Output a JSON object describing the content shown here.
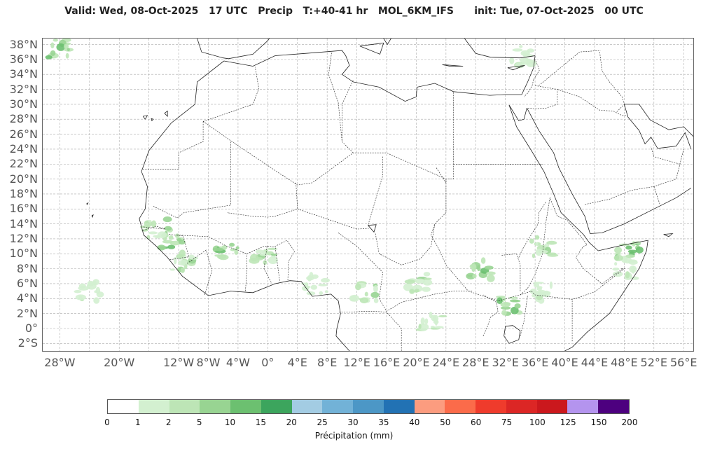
{
  "title": "Valid: Wed, 08-Oct-2025   17 UTC   Precip   T:+40-41 hr   MOL_6KM_IFS      init: Tue, 07-Oct-2025   00 UTC",
  "map": {
    "lat_labels": [
      "38°N",
      "36°N",
      "34°N",
      "32°N",
      "30°N",
      "28°N",
      "26°N",
      "24°N",
      "22°N",
      "20°N",
      "18°N",
      "16°N",
      "14°N",
      "12°N",
      "10°N",
      "8°N",
      "6°N",
      "4°N",
      "2°N",
      "0°",
      "2°S"
    ],
    "lon_labels": [
      {
        "label": "28°W",
        "lon": -28
      },
      {
        "label": "20°W",
        "lon": -20
      },
      {
        "label": "12°W",
        "lon": -12
      },
      {
        "label": "8°W",
        "lon": -8
      },
      {
        "label": "4°W",
        "lon": -4
      },
      {
        "label": "0°",
        "lon": 0
      },
      {
        "label": "4°E",
        "lon": 4
      },
      {
        "label": "8°E",
        "lon": 8
      },
      {
        "label": "12°E",
        "lon": 12
      },
      {
        "label": "16°E",
        "lon": 16
      },
      {
        "label": "20°E",
        "lon": 20
      },
      {
        "label": "24°E",
        "lon": 24
      },
      {
        "label": "28°E",
        "lon": 28
      },
      {
        "label": "32°E",
        "lon": 32
      },
      {
        "label": "36°E",
        "lon": 36
      },
      {
        "label": "40°E",
        "lon": 40
      },
      {
        "label": "44°E",
        "lon": 44
      },
      {
        "label": "48°E",
        "lon": 48
      },
      {
        "label": "52°E",
        "lon": 52
      },
      {
        "label": "56°E",
        "lon": 56
      }
    ]
  },
  "colorbar": {
    "title": "Précipitation (mm)",
    "ticks": [
      "0",
      "1",
      "2",
      "5",
      "10",
      "15",
      "20",
      "25",
      "30",
      "35",
      "40",
      "50",
      "60",
      "75",
      "100",
      "125",
      "150",
      "200"
    ],
    "colors": [
      "#ffffff",
      "#d3f0d0",
      "#bde5b6",
      "#98d492",
      "#6cc070",
      "#3ca55d",
      "#a3cce3",
      "#72b2d7",
      "#4c97c6",
      "#2272b4",
      "#fc9c7f",
      "#fb6b4a",
      "#ef3b2c",
      "#dc2625",
      "#cb181d",
      "#b494ee",
      "#4d007f"
    ]
  },
  "precip_areas": [
    {
      "name": "guinea-coast",
      "lon": -13,
      "lat": 12,
      "level": 3
    },
    {
      "name": "senegal",
      "lon": -15,
      "lat": 13.5,
      "level": 2
    },
    {
      "name": "sierra-leone",
      "lon": -11.5,
      "lat": 9,
      "level": 2
    },
    {
      "name": "cote-divoire",
      "lon": -5.5,
      "lat": 10,
      "level": 3
    },
    {
      "name": "ghana-north",
      "lon": -0.5,
      "lat": 10,
      "level": 2
    },
    {
      "name": "nigeria-south",
      "lon": 6.5,
      "lat": 6,
      "level": 1
    },
    {
      "name": "cameroon",
      "lon": 13,
      "lat": 5,
      "level": 2
    },
    {
      "name": "car",
      "lon": 20.5,
      "lat": 6,
      "level": 2
    },
    {
      "name": "south-sudan",
      "lon": 28.5,
      "lat": 8,
      "level": 3
    },
    {
      "name": "uganda",
      "lon": 32.5,
      "lat": 3,
      "level": 3
    },
    {
      "name": "ethiopia",
      "lon": 37,
      "lat": 11,
      "level": 2
    },
    {
      "name": "somalia",
      "lon": 48,
      "lat": 8,
      "level": 1
    },
    {
      "name": "yemen-coast",
      "lon": 48.5,
      "lat": 10.7,
      "level": 3
    },
    {
      "name": "mediterranean",
      "lon": 34,
      "lat": 36.5,
      "level": 1
    },
    {
      "name": "atlantic-band",
      "lon": -24,
      "lat": 5,
      "level": 1
    },
    {
      "name": "azores",
      "lon": -28,
      "lat": 37.5,
      "level": 3
    },
    {
      "name": "congo-north",
      "lon": 22,
      "lat": 1,
      "level": 1
    },
    {
      "name": "kenya",
      "lon": 37,
      "lat": 5,
      "level": 1
    }
  ]
}
